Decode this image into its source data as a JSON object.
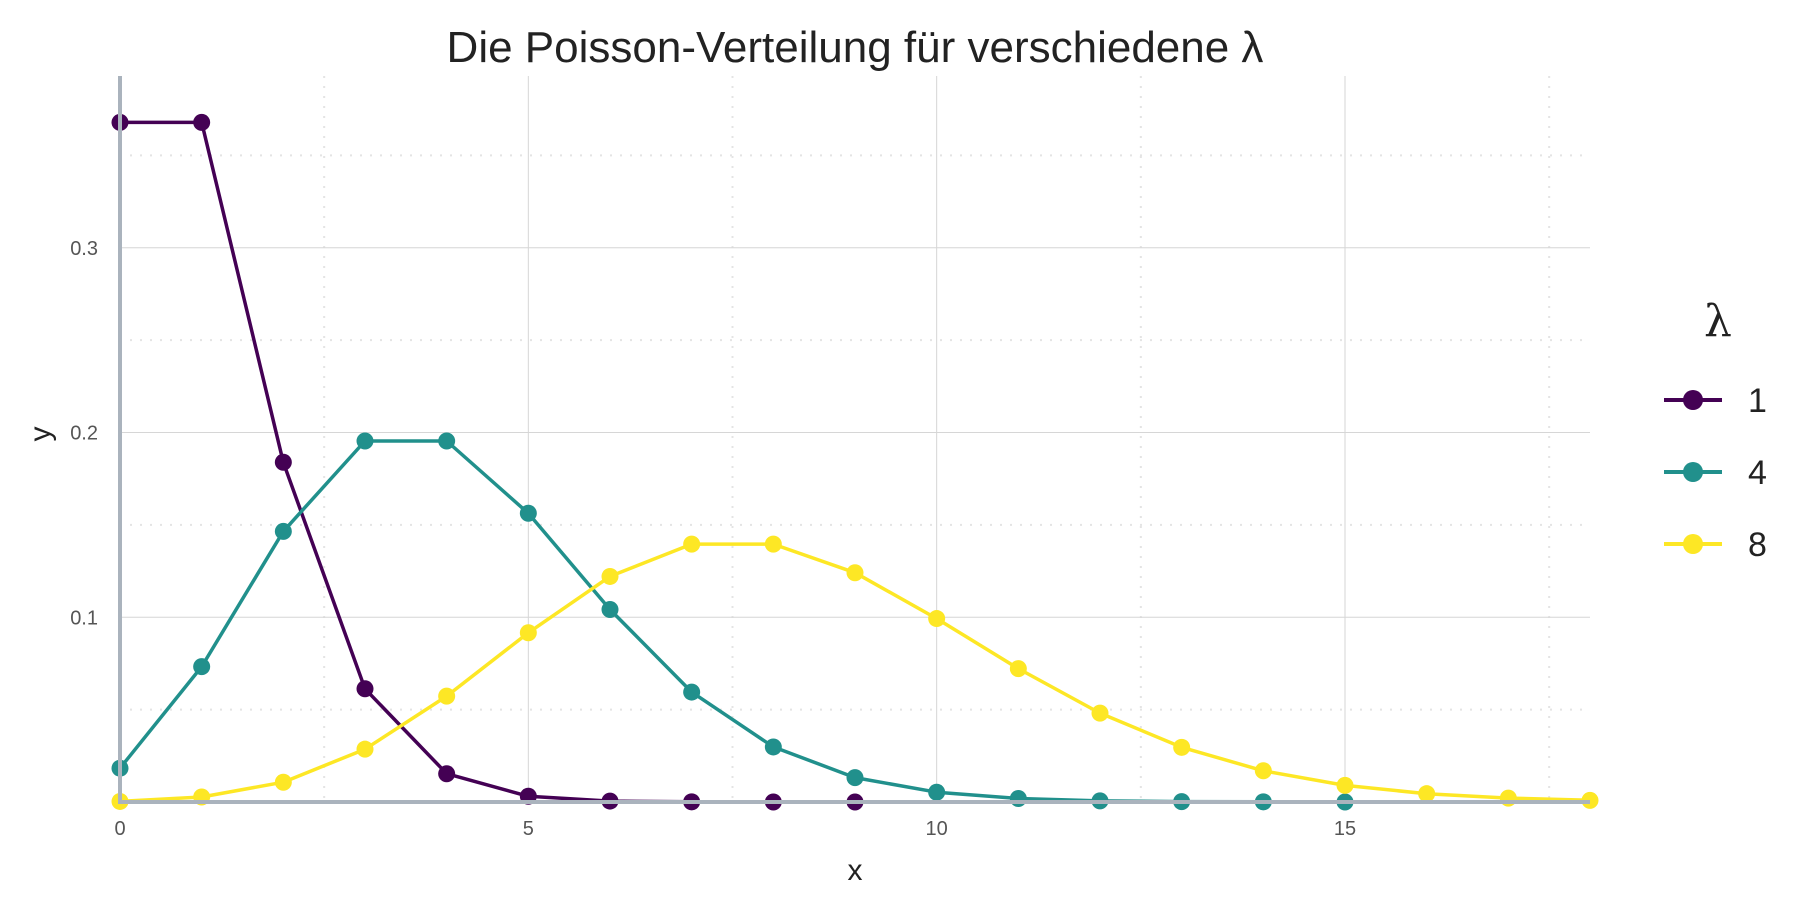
{
  "chart_data": {
    "type": "line",
    "title": "Die Poisson-Verteilung für verschiedene λ",
    "xlabel": "x",
    "ylabel": "y",
    "xlim": [
      0,
      18
    ],
    "ylim": [
      0,
      0.393
    ],
    "x_ticks": [
      0,
      5,
      10,
      15
    ],
    "x_tick_labels": [
      "0",
      "5",
      "10",
      "15"
    ],
    "y_ticks": [
      0.1,
      0.2,
      0.3
    ],
    "y_tick_labels": [
      "0.1",
      "0.2",
      "0.3"
    ],
    "grid": true,
    "legend": {
      "title": "λ",
      "placement": "right"
    },
    "x": [
      0,
      1,
      2,
      3,
      4,
      5,
      6,
      7,
      8,
      9,
      10,
      11,
      12,
      13,
      14,
      15,
      16,
      17,
      18
    ],
    "series": [
      {
        "name": "1",
        "color": "#440154",
        "values": [
          0.3679,
          0.3679,
          0.1839,
          0.0613,
          0.0153,
          0.0031,
          0.0005,
          0.0001,
          0.0,
          0.0,
          null,
          null,
          null,
          null,
          null,
          null,
          null,
          null,
          null
        ]
      },
      {
        "name": "4",
        "color": "#21908C",
        "values": [
          0.0183,
          0.0733,
          0.1465,
          0.1954,
          0.1954,
          0.1563,
          0.1042,
          0.0595,
          0.0298,
          0.0132,
          0.0053,
          0.0019,
          0.0006,
          0.0002,
          0.0001,
          0.0,
          null,
          null,
          null
        ]
      },
      {
        "name": "8",
        "color": "#FDE725",
        "values": [
          0.0003,
          0.0027,
          0.0107,
          0.0286,
          0.0573,
          0.0916,
          0.1221,
          0.1396,
          0.1396,
          0.1241,
          0.0993,
          0.0722,
          0.0481,
          0.0296,
          0.0169,
          0.009,
          0.0045,
          0.0021,
          0.0009
        ]
      }
    ]
  }
}
